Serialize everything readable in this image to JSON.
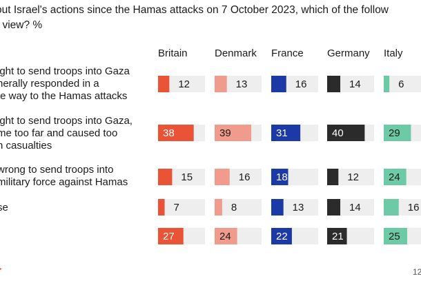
{
  "question": {
    "line1": "out Israel's actions since the Hamas attacks on 7 October 2023, which of the follow",
    "line2": "r view? %"
  },
  "colors": {
    "Britain": "#ea5336",
    "Denmark": "#f19b8c",
    "France": "#1c39a8",
    "Germany": "#2b2b2b",
    "Italy": "#6ccaa6",
    "track": "#eeeeee",
    "text_dark": "#1a1a1a",
    "text_light": "#ffffff"
  },
  "page_number": "12",
  "chart_data": {
    "type": "bar",
    "title": "",
    "countries": [
      "Britain",
      "Denmark",
      "France",
      "Germany",
      "Italy"
    ],
    "xlim": [
      0,
      50
    ],
    "rows": [
      {
        "label_lines": [
          "ight to send troops into Gaza",
          "nerally responded in a",
          "te way to the Hamas attacks"
        ],
        "values": [
          12,
          13,
          16,
          14,
          6
        ]
      },
      {
        "label_lines": [
          "ight to send troops into Gaza,",
          "me too far and caused too",
          "n casualties"
        ],
        "values": [
          38,
          39,
          31,
          40,
          29
        ]
      },
      {
        "label_lines": [
          "wrong to send troops into",
          "military force against Hamas"
        ],
        "values": [
          15,
          16,
          18,
          12,
          24
        ]
      },
      {
        "label_lines": [
          "se"
        ],
        "values": [
          7,
          8,
          13,
          14,
          16
        ]
      },
      {
        "label_lines": [],
        "values": [
          27,
          24,
          22,
          21,
          25
        ]
      }
    ]
  }
}
